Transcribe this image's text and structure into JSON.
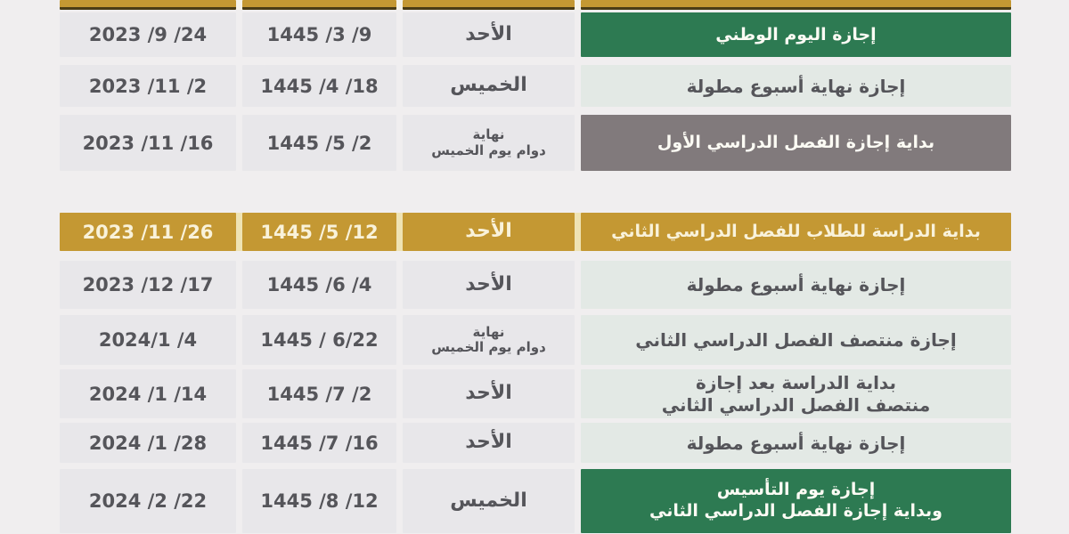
{
  "colors": {
    "page_background": "#f0eeef",
    "green_accent": "#2d7a52",
    "gold_accent": "#c49833",
    "gray_accent": "#817a7c",
    "light_date_cell": "#e8e7ea",
    "light_event_cell": "#e3e9e5",
    "dark_text": "#55555a",
    "white_text": "#fcfbf4"
  },
  "table": {
    "description_columns": [
      "event",
      "day",
      "hijri_date",
      "gregorian_date"
    ],
    "rows": [
      {
        "event": [
          "إجازة اليوم الوطني"
        ],
        "event_style": "green",
        "day": [
          "الأحد"
        ],
        "hijri": "1445 /3 /9",
        "greg": "2023 /9 /24",
        "row_style": "light"
      },
      {
        "event": [
          "إجازة نهاية أسبوع مطولة"
        ],
        "event_style": "light",
        "day": [
          "الخميس"
        ],
        "hijri": "1445 /4 /18",
        "greg": "2023 /11 /2",
        "row_style": "light"
      },
      {
        "event": [
          "بداية إجازة الفصل الدراسي الأول"
        ],
        "event_style": "gray",
        "day": [
          "نهاية",
          "دوام يوم الخميس"
        ],
        "hijri": "1445 /5 /2",
        "greg": "2023 /11 /16",
        "row_style": "light"
      },
      {
        "event": [
          "بداية الدراسة للطلاب للفصل الدراسي الثاني"
        ],
        "event_style": "gold",
        "day": [
          "الأحد"
        ],
        "hijri": "1445 /5 /12",
        "greg": "2023 /11 /26",
        "row_style": "gold"
      },
      {
        "event": [
          "إجازة نهاية أسبوع مطولة"
        ],
        "event_style": "light",
        "day": [
          "الأحد"
        ],
        "hijri": "1445 /6 /4",
        "greg": "2023 /12 /17",
        "row_style": "light"
      },
      {
        "event": [
          "إجازة منتصف الفصل الدراسي الثاني"
        ],
        "event_style": "light",
        "day": [
          "نهاية",
          "دوام يوم الخميس"
        ],
        "hijri": "1445 / 6/22",
        "greg": "2024/1 /4",
        "row_style": "light"
      },
      {
        "event": [
          "بداية الدراسة بعد إجازة",
          "منتصف الفصل الدراسي الثاني"
        ],
        "event_style": "light",
        "day": [
          "الأحد"
        ],
        "hijri": "1445 /7 /2",
        "greg": "2024 /1 /14",
        "row_style": "light"
      },
      {
        "event": [
          "إجازة نهاية أسبوع مطولة"
        ],
        "event_style": "light",
        "day": [
          "الأحد"
        ],
        "hijri": "1445 /7 /16",
        "greg": "2024 /1 /28",
        "row_style": "light"
      },
      {
        "event": [
          "إجازة يوم التأسيس",
          "وبداية إجازة الفصل الدراسي الثاني"
        ],
        "event_style": "green",
        "day": [
          "الخميس"
        ],
        "hijri": "1445 /8 /12",
        "greg": "2024 /2 /22",
        "row_style": "light"
      }
    ]
  }
}
